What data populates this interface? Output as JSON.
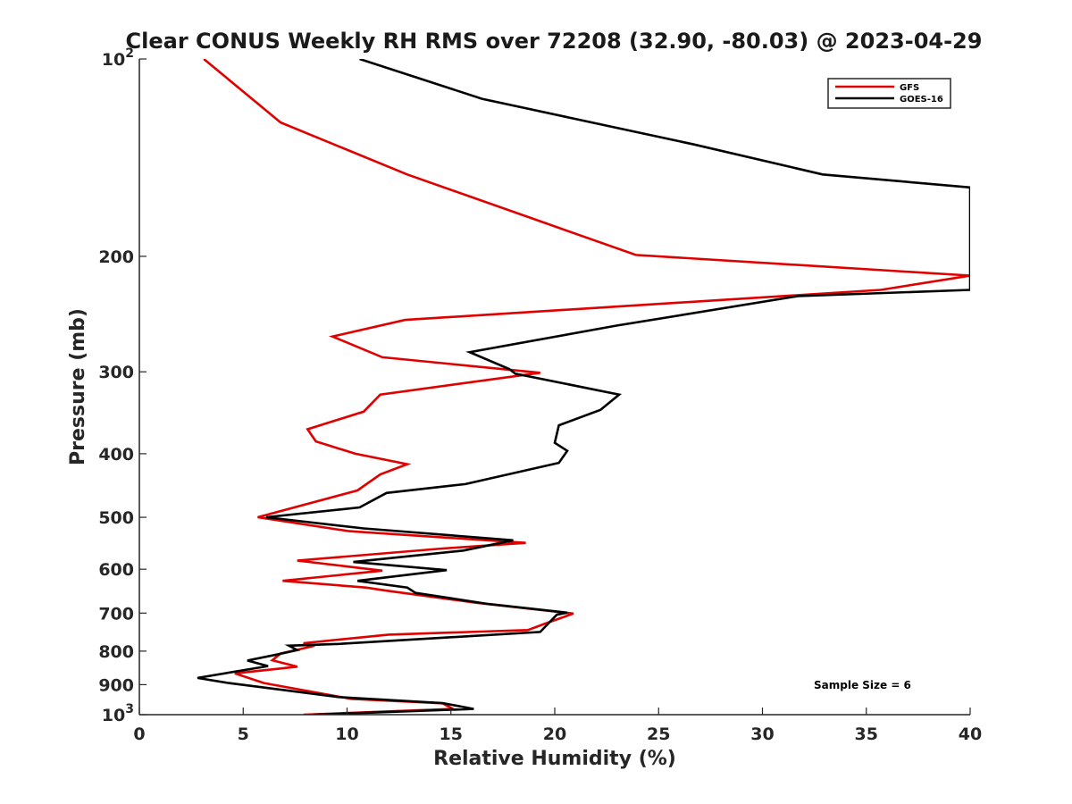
{
  "chart_data": {
    "type": "line",
    "title": "Clear CONUS Weekly RH RMS over 72208 (32.90, -80.03) @ 2023-04-29",
    "xlabel": "Relative Humidity (%)",
    "ylabel": "Pressure (mb)",
    "xlim": [
      0,
      40
    ],
    "ylim": [
      100,
      1000
    ],
    "yscale": "log",
    "y_reversed": true,
    "grid": false,
    "legend_position": "top-right",
    "x_ticks": [
      "0",
      "5",
      "10",
      "15",
      "20",
      "25",
      "30",
      "35",
      "40"
    ],
    "y_ticks": [
      {
        "value": 100,
        "base": "10",
        "exp": "2"
      },
      {
        "value": 200,
        "label": "200"
      },
      {
        "value": 300,
        "label": "300"
      },
      {
        "value": 400,
        "label": "400"
      },
      {
        "value": 500,
        "label": "500"
      },
      {
        "value": 600,
        "label": "600"
      },
      {
        "value": 700,
        "label": "700"
      },
      {
        "value": 800,
        "label": "800"
      },
      {
        "value": 900,
        "label": "900"
      },
      {
        "value": 1000,
        "base": "10",
        "exp": "3"
      }
    ],
    "annotation": "Sample Size = 6",
    "series": [
      {
        "name": "GFS",
        "color": "#e00000",
        "points": [
          [
            3.1,
            100
          ],
          [
            6.8,
            125
          ],
          [
            12.9,
            150
          ],
          [
            18.9,
            175
          ],
          [
            23.9,
            199
          ],
          [
            40.0,
            214
          ],
          [
            35.7,
            225
          ],
          [
            12.8,
            250
          ],
          [
            9.3,
            265
          ],
          [
            11.7,
            285
          ],
          [
            19.3,
            301
          ],
          [
            11.6,
            325
          ],
          [
            10.8,
            345
          ],
          [
            8.1,
            367
          ],
          [
            8.5,
            383
          ],
          [
            10.4,
            400
          ],
          [
            12.9,
            415
          ],
          [
            11.6,
            430
          ],
          [
            10.5,
            455
          ],
          [
            5.7,
            500
          ],
          [
            10.1,
            525
          ],
          [
            18.6,
            547
          ],
          [
            14.6,
            558
          ],
          [
            7.6,
            582
          ],
          [
            11.7,
            603
          ],
          [
            6.9,
            625
          ],
          [
            10.9,
            640
          ],
          [
            11.9,
            647
          ],
          [
            16.2,
            675
          ],
          [
            20.9,
            701
          ],
          [
            19.5,
            727
          ],
          [
            18.7,
            743
          ],
          [
            12.0,
            755
          ],
          [
            7.9,
            778
          ],
          [
            8.3,
            787
          ],
          [
            6.8,
            807
          ],
          [
            6.4,
            826
          ],
          [
            7.6,
            845
          ],
          [
            4.6,
            865
          ],
          [
            6.0,
            895
          ],
          [
            10.2,
            946
          ],
          [
            14.6,
            961
          ],
          [
            15.1,
            980
          ],
          [
            7.9,
            1000
          ]
        ]
      },
      {
        "name": "GOES-16",
        "color": "#000000",
        "points": [
          [
            10.6,
            100
          ],
          [
            16.5,
            115
          ],
          [
            26.7,
            135
          ],
          [
            32.9,
            150
          ],
          [
            40.0,
            157
          ],
          [
            40.0,
            225
          ],
          [
            31.7,
            230
          ],
          [
            23.0,
            255
          ],
          [
            15.9,
            280
          ],
          [
            17.8,
            297
          ],
          [
            18.1,
            302
          ],
          [
            23.1,
            325
          ],
          [
            22.2,
            343
          ],
          [
            20.2,
            362
          ],
          [
            20.0,
            385
          ],
          [
            20.6,
            396
          ],
          [
            20.2,
            413
          ],
          [
            15.7,
            445
          ],
          [
            11.9,
            459
          ],
          [
            10.6,
            483
          ],
          [
            6.1,
            500
          ],
          [
            10.8,
            520
          ],
          [
            18.0,
            542
          ],
          [
            15.6,
            562
          ],
          [
            10.3,
            585
          ],
          [
            14.8,
            602
          ],
          [
            10.5,
            625
          ],
          [
            12.9,
            640
          ],
          [
            13.3,
            652
          ],
          [
            16.8,
            678
          ],
          [
            20.6,
            699
          ],
          [
            20.1,
            704
          ],
          [
            19.3,
            748
          ],
          [
            9.6,
            780
          ],
          [
            7.2,
            785
          ],
          [
            7.6,
            797
          ],
          [
            6.6,
            810
          ],
          [
            5.2,
            827
          ],
          [
            6.2,
            843
          ],
          [
            2.8,
            879
          ],
          [
            4.3,
            895
          ],
          [
            9.6,
            940
          ],
          [
            14.6,
            960
          ],
          [
            16.1,
            980
          ],
          [
            8.4,
            1000
          ]
        ]
      }
    ]
  }
}
